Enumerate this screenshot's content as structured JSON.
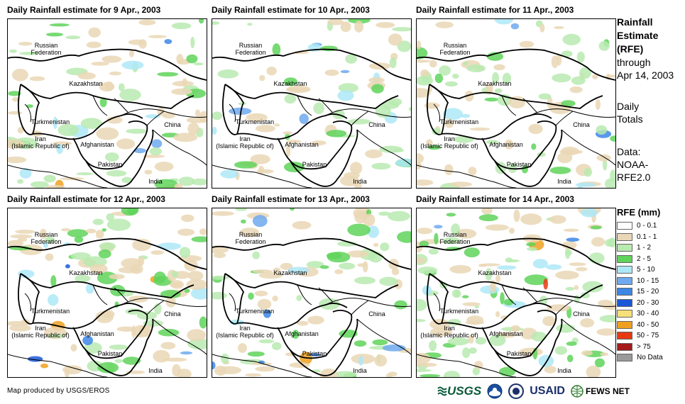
{
  "panels": [
    {
      "title": "Daily Rainfall estimate for 9 Apr., 2003",
      "level": 2
    },
    {
      "title": "Daily Rainfall estimate for 10 Apr., 2003",
      "level": 1
    },
    {
      "title": "Daily Rainfall estimate for 11 Apr., 2003",
      "level": 2
    },
    {
      "title": "Daily Rainfall estimate for 12 Apr., 2003",
      "level": 3
    },
    {
      "title": "Daily Rainfall estimate for 13 Apr., 2003",
      "level": 2
    },
    {
      "title": "Daily Rainfall estimate for 14 Apr., 2003",
      "level": 4
    }
  ],
  "map_labels": {
    "russia": "Russian\nFederation",
    "kazakhstan": "Kazakhstan",
    "turkmenistan": "Turkmenistan",
    "iran": "Iran\n(Islamic Republic of)",
    "afghanistan": "Afghanistan",
    "pakistan": "Pakistan",
    "china": "China",
    "india": "India"
  },
  "side": {
    "title_line1": "Rainfall",
    "title_line2": "Estimate",
    "title_line3": "(RFE)",
    "through": "through",
    "date": "Apr 14, 2003",
    "totals_line1": "Daily",
    "totals_line2": "Totals",
    "data_line1": "Data:",
    "data_line2": "NOAA-",
    "data_line3": "RFE2.0"
  },
  "legend": {
    "title": "RFE (mm)",
    "items": [
      {
        "label": "0 - 0.1",
        "color": "#ffffff"
      },
      {
        "label": "0.1 - 1",
        "color": "#ead7b5"
      },
      {
        "label": "1 - 2",
        "color": "#b9eab0"
      },
      {
        "label": "2 - 5",
        "color": "#5fd35a"
      },
      {
        "label": "5 - 10",
        "color": "#aee8f7"
      },
      {
        "label": "10 - 15",
        "color": "#6fa9ef"
      },
      {
        "label": "15 - 20",
        "color": "#3d86e6"
      },
      {
        "label": "20 - 30",
        "color": "#1b58d8"
      },
      {
        "label": "30 - 40",
        "color": "#f7e07a"
      },
      {
        "label": "40 - 50",
        "color": "#f0a020"
      },
      {
        "label": "50 - 75",
        "color": "#e83a10"
      },
      {
        "label": "> 75",
        "color": "#a51b1b"
      },
      {
        "label": "No Data",
        "color": "#9a9a9a"
      }
    ]
  },
  "footer": "Map produced by USGS/EROS",
  "logos": {
    "usgs": "USGS",
    "usaid": "USAID",
    "fews": "FEWS NET"
  }
}
